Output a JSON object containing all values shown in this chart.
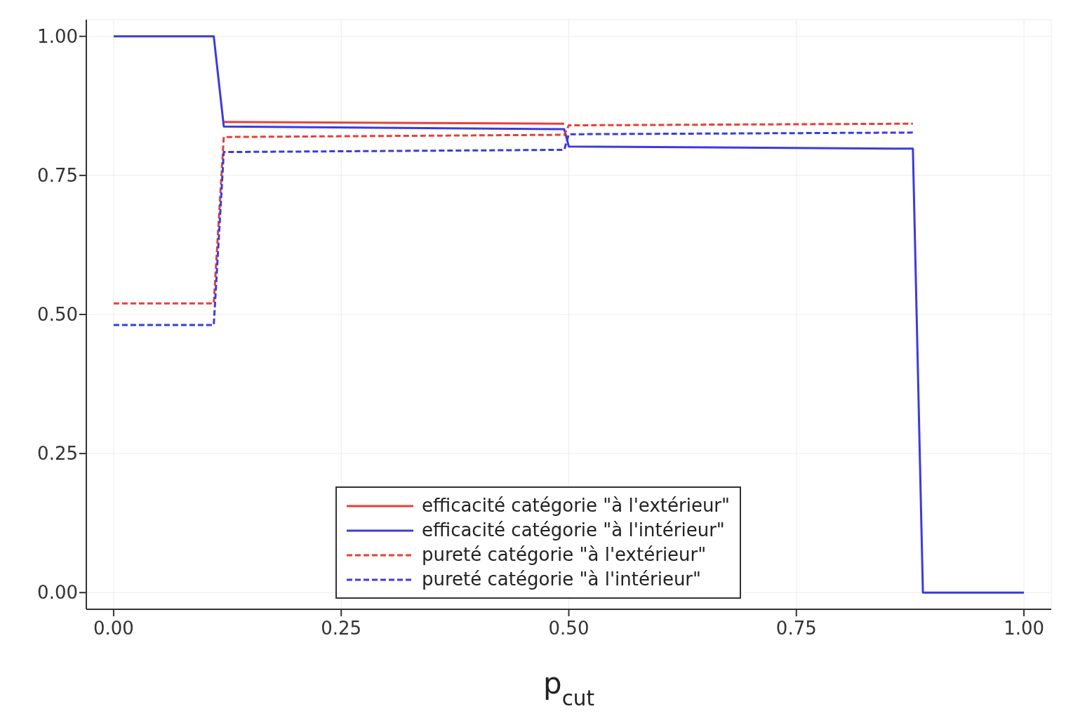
{
  "chart_data": {
    "type": "line",
    "xlabel": "p$_{cut}$",
    "xlim": [
      -0.03,
      1.03
    ],
    "ylim": [
      -0.03,
      1.03
    ],
    "xticks": [
      {
        "value": 0,
        "label": "0.00"
      },
      {
        "value": 0.25,
        "label": "0.25"
      },
      {
        "value": 0.5,
        "label": "0.50"
      },
      {
        "value": 0.75,
        "label": "0.75"
      },
      {
        "value": 1,
        "label": "1.00"
      }
    ],
    "yticks": [
      {
        "value": 0,
        "label": "0.00"
      },
      {
        "value": 0.25,
        "label": "0.25"
      },
      {
        "value": 0.5,
        "label": "0.50"
      },
      {
        "value": 0.75,
        "label": "0.75"
      },
      {
        "value": 1,
        "label": "1.00"
      }
    ],
    "grid": true,
    "legend": "bottom",
    "marker": "none",
    "series": [
      {
        "name": "efficacité catégorie \"à l'extérieur\"",
        "color": "#e6403a",
        "line_style": "solid",
        "x": [
          0.121,
          0.495
        ],
        "values": [
          0.846,
          0.843
        ]
      },
      {
        "name": "efficacité catégorie \"à l'intérieur\"",
        "color": "#3b3bdf",
        "line_style": "solid",
        "x": [
          0,
          0.11,
          0.121,
          0.495,
          0.5,
          0.878,
          0.889,
          1
        ],
        "values": [
          1,
          1,
          0.838,
          0.833,
          0.802,
          0.798,
          0,
          0
        ]
      },
      {
        "name": "pureté catégorie \"à l'extérieur\"",
        "color": "#e6403a",
        "line_style": "dashed",
        "x": [
          0,
          0.11,
          0.121,
          0.495,
          0.5,
          0.878
        ],
        "values": [
          0.52,
          0.52,
          0.819,
          0.823,
          0.84,
          0.843
        ]
      },
      {
        "name": "pureté catégorie \"à l'intérieur\"",
        "color": "#3b3bdf",
        "line_style": "dashed",
        "x": [
          0,
          0.11,
          0.121,
          0.495,
          0.5,
          0.878
        ],
        "values": [
          0.481,
          0.481,
          0.792,
          0.796,
          0.824,
          0.827
        ]
      }
    ]
  }
}
